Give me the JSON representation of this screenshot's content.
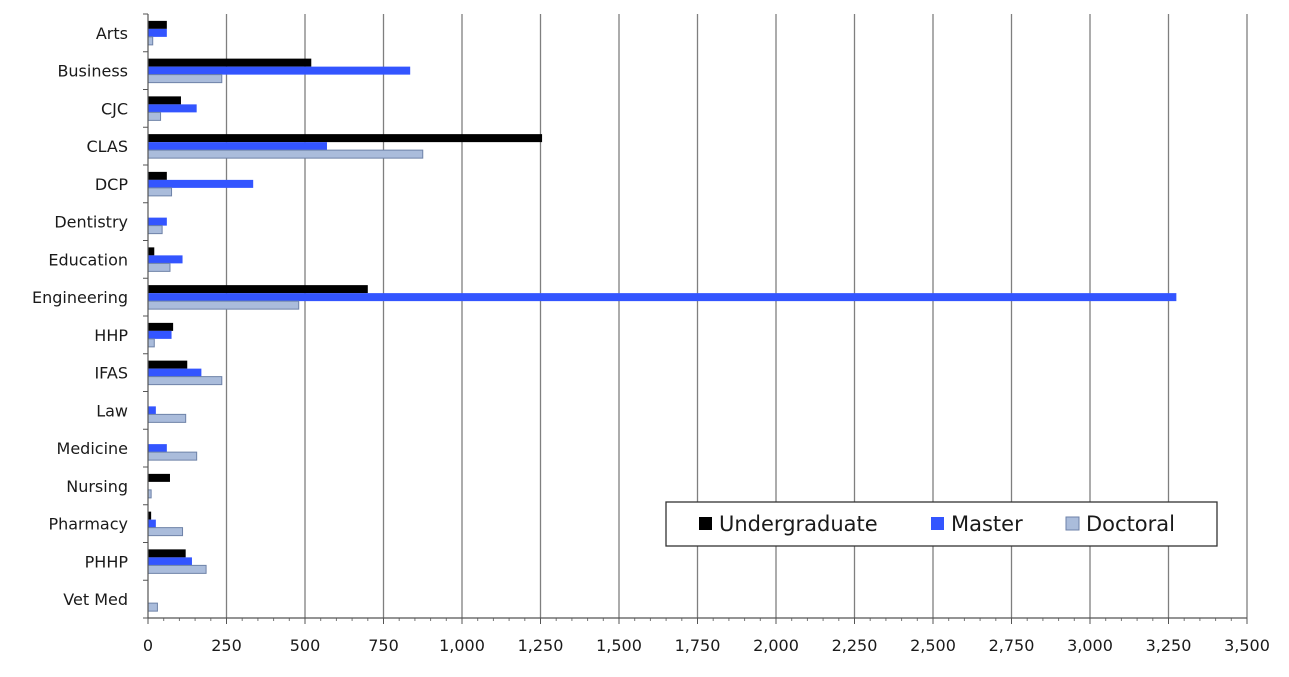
{
  "chart_data": {
    "type": "bar",
    "orientation": "horizontal",
    "categories": [
      "Arts",
      "Business",
      "CJC",
      "CLAS",
      "DCP",
      "Dentistry",
      "Education",
      "Engineering",
      "HHP",
      "IFAS",
      "Law",
      "Medicine",
      "Nursing",
      "Pharmacy",
      "PHHP",
      "Vet Med"
    ],
    "series": [
      {
        "name": "Undergraduate",
        "color": "#000000",
        "values": [
          60,
          520,
          105,
          1255,
          60,
          0,
          20,
          700,
          80,
          125,
          0,
          0,
          70,
          10,
          120,
          0
        ]
      },
      {
        "name": "Master",
        "color": "#3355ff",
        "values": [
          60,
          835,
          155,
          570,
          335,
          60,
          110,
          3275,
          75,
          170,
          25,
          60,
          0,
          25,
          140,
          0
        ]
      },
      {
        "name": "Doctoral",
        "color": "#aabcdb",
        "values": [
          15,
          235,
          40,
          875,
          75,
          45,
          70,
          480,
          20,
          235,
          120,
          155,
          10,
          110,
          185,
          30
        ]
      }
    ],
    "xlim": [
      0,
      3500
    ],
    "xticks": [
      0,
      250,
      500,
      750,
      1000,
      1250,
      1500,
      1750,
      2000,
      2250,
      2500,
      2750,
      3000,
      3250,
      3500
    ],
    "xtick_labels": [
      "0",
      "250",
      "500",
      "750",
      "1,000",
      "1,250",
      "1,500",
      "1,750",
      "2,000",
      "2,250",
      "2,500",
      "2,750",
      "3,000",
      "3,250",
      "3,500"
    ],
    "title": "",
    "xlabel": "",
    "ylabel": "",
    "grid": "vertical major gridlines",
    "legend": {
      "placement": "bottom-right",
      "entries": [
        "Undergraduate",
        "Master",
        "Doctoral"
      ]
    }
  }
}
